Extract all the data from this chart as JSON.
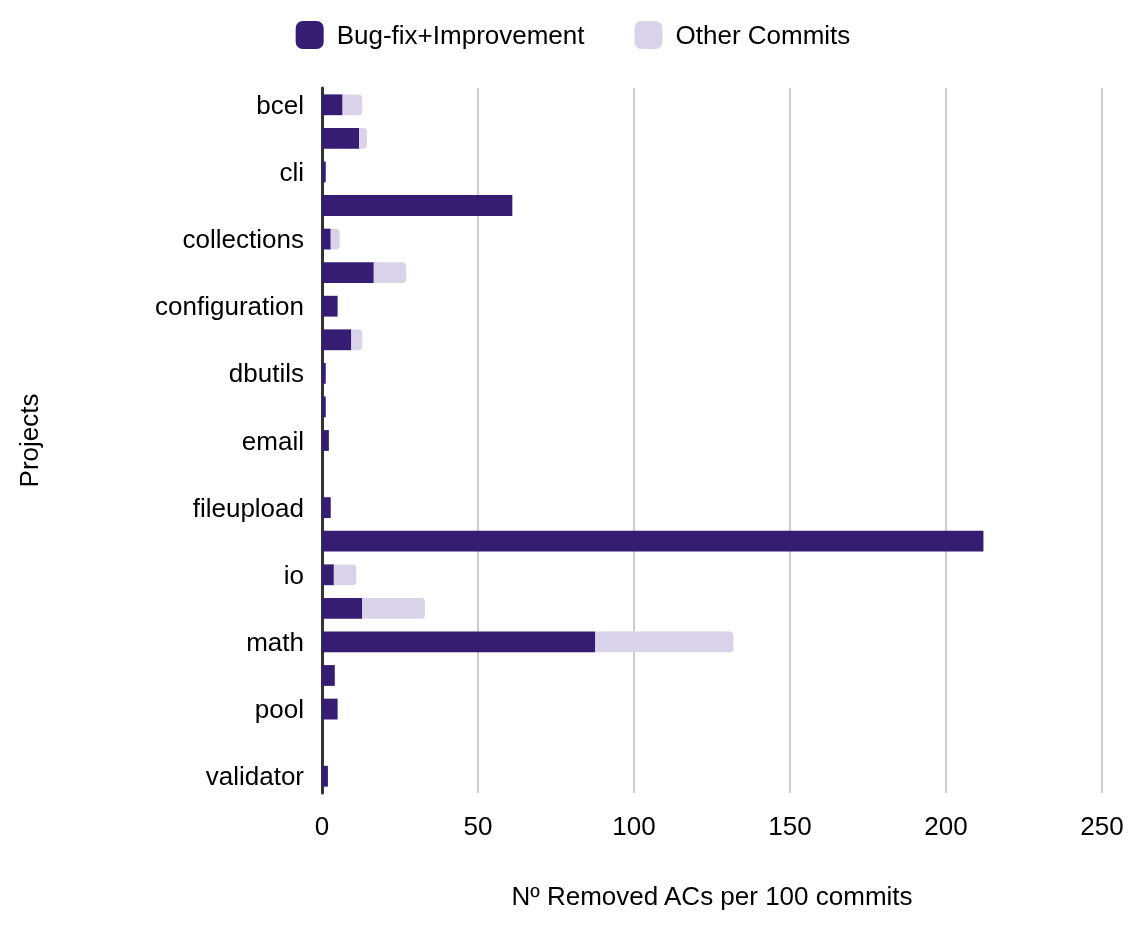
{
  "chart_data": {
    "type": "bar",
    "orientation": "horizontal",
    "stacked": true,
    "xlabel": "Nº Removed ACs per 100 commits",
    "ylabel": "Projects",
    "categories": [
      "bcel",
      null,
      "cli",
      null,
      "collections",
      null,
      "configuration",
      null,
      "dbutils",
      null,
      "email",
      null,
      "fileupload",
      null,
      "io",
      null,
      "math",
      null,
      "pool",
      null,
      "validator"
    ],
    "series": [
      {
        "name": "Bug-fix+Improvement",
        "color": "#361c73",
        "values": [
          6.6,
          11.9,
          1.2,
          61,
          2.8,
          16.6,
          5.0,
          9.4,
          1.2,
          1.2,
          2.2,
          0,
          2.8,
          212,
          3.8,
          12.9,
          87.6,
          4.1,
          5.0,
          0,
          1.9
        ]
      },
      {
        "name": "Other Commits",
        "color": "#dad2e9",
        "values": [
          6.3,
          2.5,
          0,
          0,
          2.9,
          10.4,
          0,
          3.5,
          0,
          0,
          0,
          0,
          0,
          0,
          7.2,
          20.1,
          44.3,
          0,
          0,
          0,
          0
        ]
      }
    ],
    "xlim": [
      0,
      250
    ],
    "xticks": [
      0,
      50,
      100,
      150,
      200,
      250
    ],
    "grid": "x",
    "legend": "top"
  }
}
